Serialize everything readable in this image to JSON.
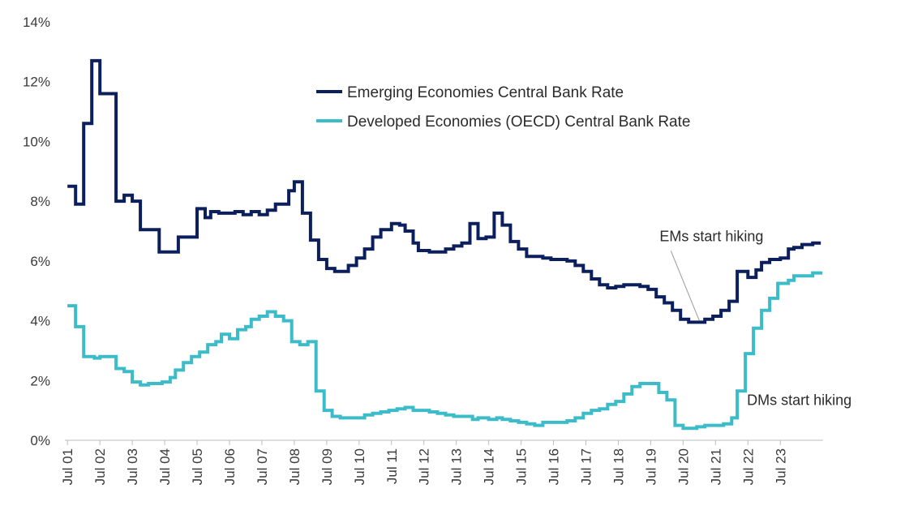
{
  "chart_data": {
    "type": "line",
    "title": "",
    "xlabel": "",
    "ylabel": "",
    "ylim": [
      0,
      14
    ],
    "y_ticks": [
      "0%",
      "2%",
      "4%",
      "6%",
      "8%",
      "10%",
      "12%",
      "14%"
    ],
    "x_ticks": [
      "Jul 01",
      "Jul 02",
      "Jul 03",
      "Jul 04",
      "Jul 05",
      "Jul 06",
      "Jul 07",
      "Jul 08",
      "Jul 09",
      "Jul 10",
      "Jul 11",
      "Jul 12",
      "Jul 13",
      "Jul 14",
      "Jul 15",
      "Jul 16",
      "Jul 17",
      "Jul 18",
      "Jul 19",
      "Jul 20",
      "Jul 21",
      "Jul 22",
      "Jul 23"
    ],
    "xlim": [
      2001.5,
      2024.9
    ],
    "step": true,
    "grid": false,
    "legend_position": "top-right",
    "series": [
      {
        "name": "Emerging Economies Central Bank Rate",
        "color": "#0b1f5c",
        "points": [
          [
            2001.58,
            8.5
          ],
          [
            2001.83,
            7.9
          ],
          [
            2002.08,
            10.6
          ],
          [
            2002.33,
            12.7
          ],
          [
            2002.58,
            11.6
          ],
          [
            2003.08,
            8.0
          ],
          [
            2003.33,
            8.2
          ],
          [
            2003.58,
            8.0
          ],
          [
            2003.83,
            7.05
          ],
          [
            2004.41,
            6.3
          ],
          [
            2004.75,
            6.3
          ],
          [
            2005.0,
            6.8
          ],
          [
            2005.58,
            7.75
          ],
          [
            2005.83,
            7.45
          ],
          [
            2006.0,
            7.65
          ],
          [
            2006.25,
            7.6
          ],
          [
            2006.5,
            7.6
          ],
          [
            2006.75,
            7.65
          ],
          [
            2007.0,
            7.55
          ],
          [
            2007.25,
            7.65
          ],
          [
            2007.5,
            7.55
          ],
          [
            2007.75,
            7.7
          ],
          [
            2008.0,
            7.9
          ],
          [
            2008.41,
            8.35
          ],
          [
            2008.58,
            8.65
          ],
          [
            2008.83,
            7.6
          ],
          [
            2009.08,
            6.7
          ],
          [
            2009.33,
            6.05
          ],
          [
            2009.58,
            5.75
          ],
          [
            2009.83,
            5.65
          ],
          [
            2010.25,
            5.85
          ],
          [
            2010.5,
            6.1
          ],
          [
            2010.75,
            6.4
          ],
          [
            2011.0,
            6.8
          ],
          [
            2011.25,
            7.05
          ],
          [
            2011.58,
            7.25
          ],
          [
            2011.83,
            7.2
          ],
          [
            2012.0,
            7.0
          ],
          [
            2012.25,
            6.6
          ],
          [
            2012.41,
            6.35
          ],
          [
            2012.75,
            6.3
          ],
          [
            2013.0,
            6.3
          ],
          [
            2013.25,
            6.4
          ],
          [
            2013.5,
            6.5
          ],
          [
            2013.75,
            6.6
          ],
          [
            2014.0,
            7.25
          ],
          [
            2014.25,
            6.75
          ],
          [
            2014.5,
            6.8
          ],
          [
            2014.75,
            7.6
          ],
          [
            2015.0,
            7.2
          ],
          [
            2015.25,
            6.65
          ],
          [
            2015.5,
            6.4
          ],
          [
            2015.75,
            6.15
          ],
          [
            2016.25,
            6.1
          ],
          [
            2016.5,
            6.05
          ],
          [
            2017.0,
            6.0
          ],
          [
            2017.25,
            5.85
          ],
          [
            2017.5,
            5.65
          ],
          [
            2017.75,
            5.4
          ],
          [
            2018.0,
            5.2
          ],
          [
            2018.25,
            5.1
          ],
          [
            2018.5,
            5.15
          ],
          [
            2018.75,
            5.2
          ],
          [
            2019.25,
            5.15
          ],
          [
            2019.5,
            5.05
          ],
          [
            2019.75,
            4.8
          ],
          [
            2020.0,
            4.6
          ],
          [
            2020.25,
            4.35
          ],
          [
            2020.5,
            4.05
          ],
          [
            2020.75,
            3.95
          ],
          [
            2021.25,
            4.05
          ],
          [
            2021.5,
            4.15
          ],
          [
            2021.75,
            4.35
          ],
          [
            2022.0,
            4.65
          ],
          [
            2022.25,
            5.65
          ],
          [
            2022.58,
            5.45
          ],
          [
            2022.83,
            5.7
          ],
          [
            2023.0,
            5.95
          ],
          [
            2023.25,
            6.05
          ],
          [
            2023.58,
            6.1
          ],
          [
            2023.83,
            6.4
          ],
          [
            2024.0,
            6.45
          ],
          [
            2024.25,
            6.55
          ],
          [
            2024.58,
            6.6
          ],
          [
            2024.83,
            6.6
          ]
        ]
      },
      {
        "name": "Developed Economies (OECD) Central Bank Rate",
        "color": "#3cbcc9",
        "points": [
          [
            2001.58,
            4.5
          ],
          [
            2001.83,
            3.8
          ],
          [
            2002.08,
            2.8
          ],
          [
            2002.41,
            2.75
          ],
          [
            2002.58,
            2.8
          ],
          [
            2003.08,
            2.4
          ],
          [
            2003.33,
            2.3
          ],
          [
            2003.58,
            1.95
          ],
          [
            2003.83,
            1.85
          ],
          [
            2004.08,
            1.9
          ],
          [
            2004.5,
            1.95
          ],
          [
            2004.75,
            2.1
          ],
          [
            2004.91,
            2.35
          ],
          [
            2005.16,
            2.6
          ],
          [
            2005.41,
            2.8
          ],
          [
            2005.66,
            2.95
          ],
          [
            2005.91,
            3.2
          ],
          [
            2006.16,
            3.3
          ],
          [
            2006.33,
            3.55
          ],
          [
            2006.58,
            3.4
          ],
          [
            2006.83,
            3.7
          ],
          [
            2007.08,
            3.8
          ],
          [
            2007.25,
            4.05
          ],
          [
            2007.5,
            4.15
          ],
          [
            2007.75,
            4.3
          ],
          [
            2008.0,
            4.15
          ],
          [
            2008.25,
            4.0
          ],
          [
            2008.5,
            3.3
          ],
          [
            2008.75,
            3.2
          ],
          [
            2009.0,
            3.3
          ],
          [
            2009.25,
            1.65
          ],
          [
            2009.5,
            1.0
          ],
          [
            2009.75,
            0.8
          ],
          [
            2010.0,
            0.75
          ],
          [
            2010.5,
            0.75
          ],
          [
            2010.75,
            0.85
          ],
          [
            2011.0,
            0.9
          ],
          [
            2011.25,
            0.95
          ],
          [
            2011.5,
            1.0
          ],
          [
            2011.75,
            1.05
          ],
          [
            2012.0,
            1.1
          ],
          [
            2012.25,
            1.0
          ],
          [
            2012.75,
            0.95
          ],
          [
            2013.0,
            0.9
          ],
          [
            2013.25,
            0.85
          ],
          [
            2013.5,
            0.8
          ],
          [
            2013.83,
            0.8
          ],
          [
            2014.08,
            0.7
          ],
          [
            2014.25,
            0.75
          ],
          [
            2014.58,
            0.7
          ],
          [
            2014.83,
            0.75
          ],
          [
            2015.0,
            0.7
          ],
          [
            2015.25,
            0.65
          ],
          [
            2015.5,
            0.6
          ],
          [
            2015.75,
            0.55
          ],
          [
            2016.0,
            0.5
          ],
          [
            2016.25,
            0.6
          ],
          [
            2016.75,
            0.6
          ],
          [
            2017.0,
            0.65
          ],
          [
            2017.25,
            0.75
          ],
          [
            2017.5,
            0.9
          ],
          [
            2017.75,
            1.0
          ],
          [
            2018.0,
            1.05
          ],
          [
            2018.25,
            1.2
          ],
          [
            2018.5,
            1.3
          ],
          [
            2018.75,
            1.55
          ],
          [
            2019.0,
            1.8
          ],
          [
            2019.25,
            1.9
          ],
          [
            2019.83,
            1.6
          ],
          [
            2020.08,
            1.35
          ],
          [
            2020.33,
            0.5
          ],
          [
            2020.58,
            0.4
          ],
          [
            2021.0,
            0.45
          ],
          [
            2021.25,
            0.5
          ],
          [
            2021.83,
            0.55
          ],
          [
            2022.08,
            0.75
          ],
          [
            2022.25,
            1.65
          ],
          [
            2022.5,
            2.9
          ],
          [
            2022.75,
            3.75
          ],
          [
            2023.0,
            4.35
          ],
          [
            2023.25,
            4.75
          ],
          [
            2023.5,
            5.25
          ],
          [
            2023.83,
            5.35
          ],
          [
            2024.0,
            5.5
          ],
          [
            2024.25,
            5.5
          ],
          [
            2024.58,
            5.6
          ],
          [
            2024.83,
            5.65
          ]
        ]
      }
    ],
    "annotations": [
      {
        "text": "EMs start hiking",
        "x": 2021.08,
        "y": 3.95
      },
      {
        "text": "DMs start hiking",
        "x": 2022.25,
        "y": 0.75
      }
    ]
  }
}
